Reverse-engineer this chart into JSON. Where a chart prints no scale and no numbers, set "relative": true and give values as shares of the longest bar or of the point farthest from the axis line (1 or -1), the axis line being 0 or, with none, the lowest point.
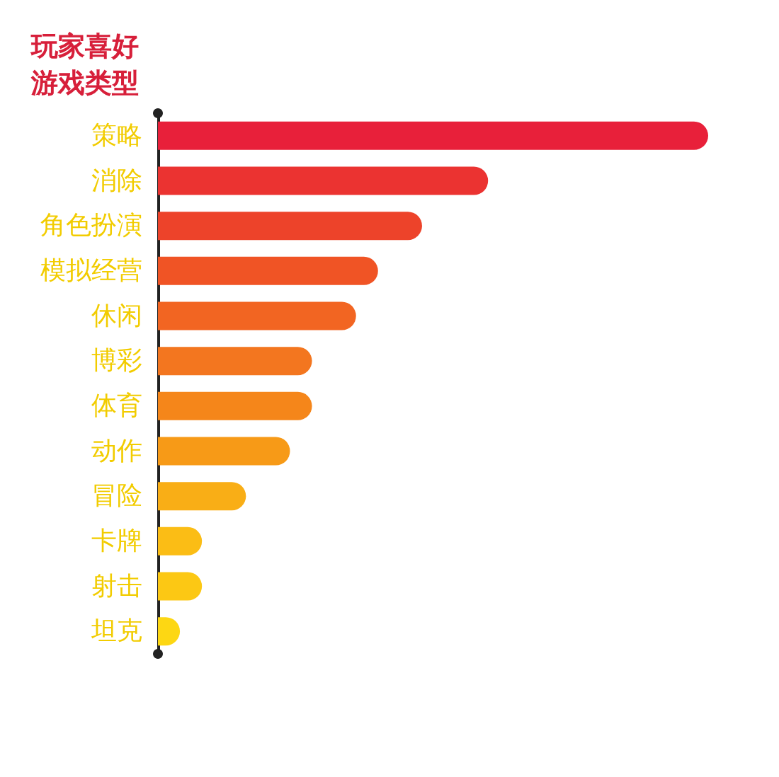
{
  "chart_data": {
    "type": "bar",
    "orientation": "horizontal",
    "relative": true,
    "title": "玩家喜好游戏类型",
    "categories": [
      "策略",
      "消除",
      "角色扮演",
      "模拟经营",
      "休闲",
      "博彩",
      "体育",
      "动作",
      "冒险",
      "卡牌",
      "射击",
      "坦克"
    ],
    "values": [
      1,
      0.6,
      0.48,
      0.4,
      0.36,
      0.28,
      0.28,
      0.24,
      0.16,
      0.08,
      0.08,
      0.04
    ],
    "colors": [
      "#e8203a",
      "#eb3331",
      "#ed432a",
      "#f05425",
      "#f26522",
      "#f3761f",
      "#f5861a",
      "#f79a17",
      "#f9ae16",
      "#fbbd15",
      "#fcc814",
      "#fdd713"
    ]
  }
}
